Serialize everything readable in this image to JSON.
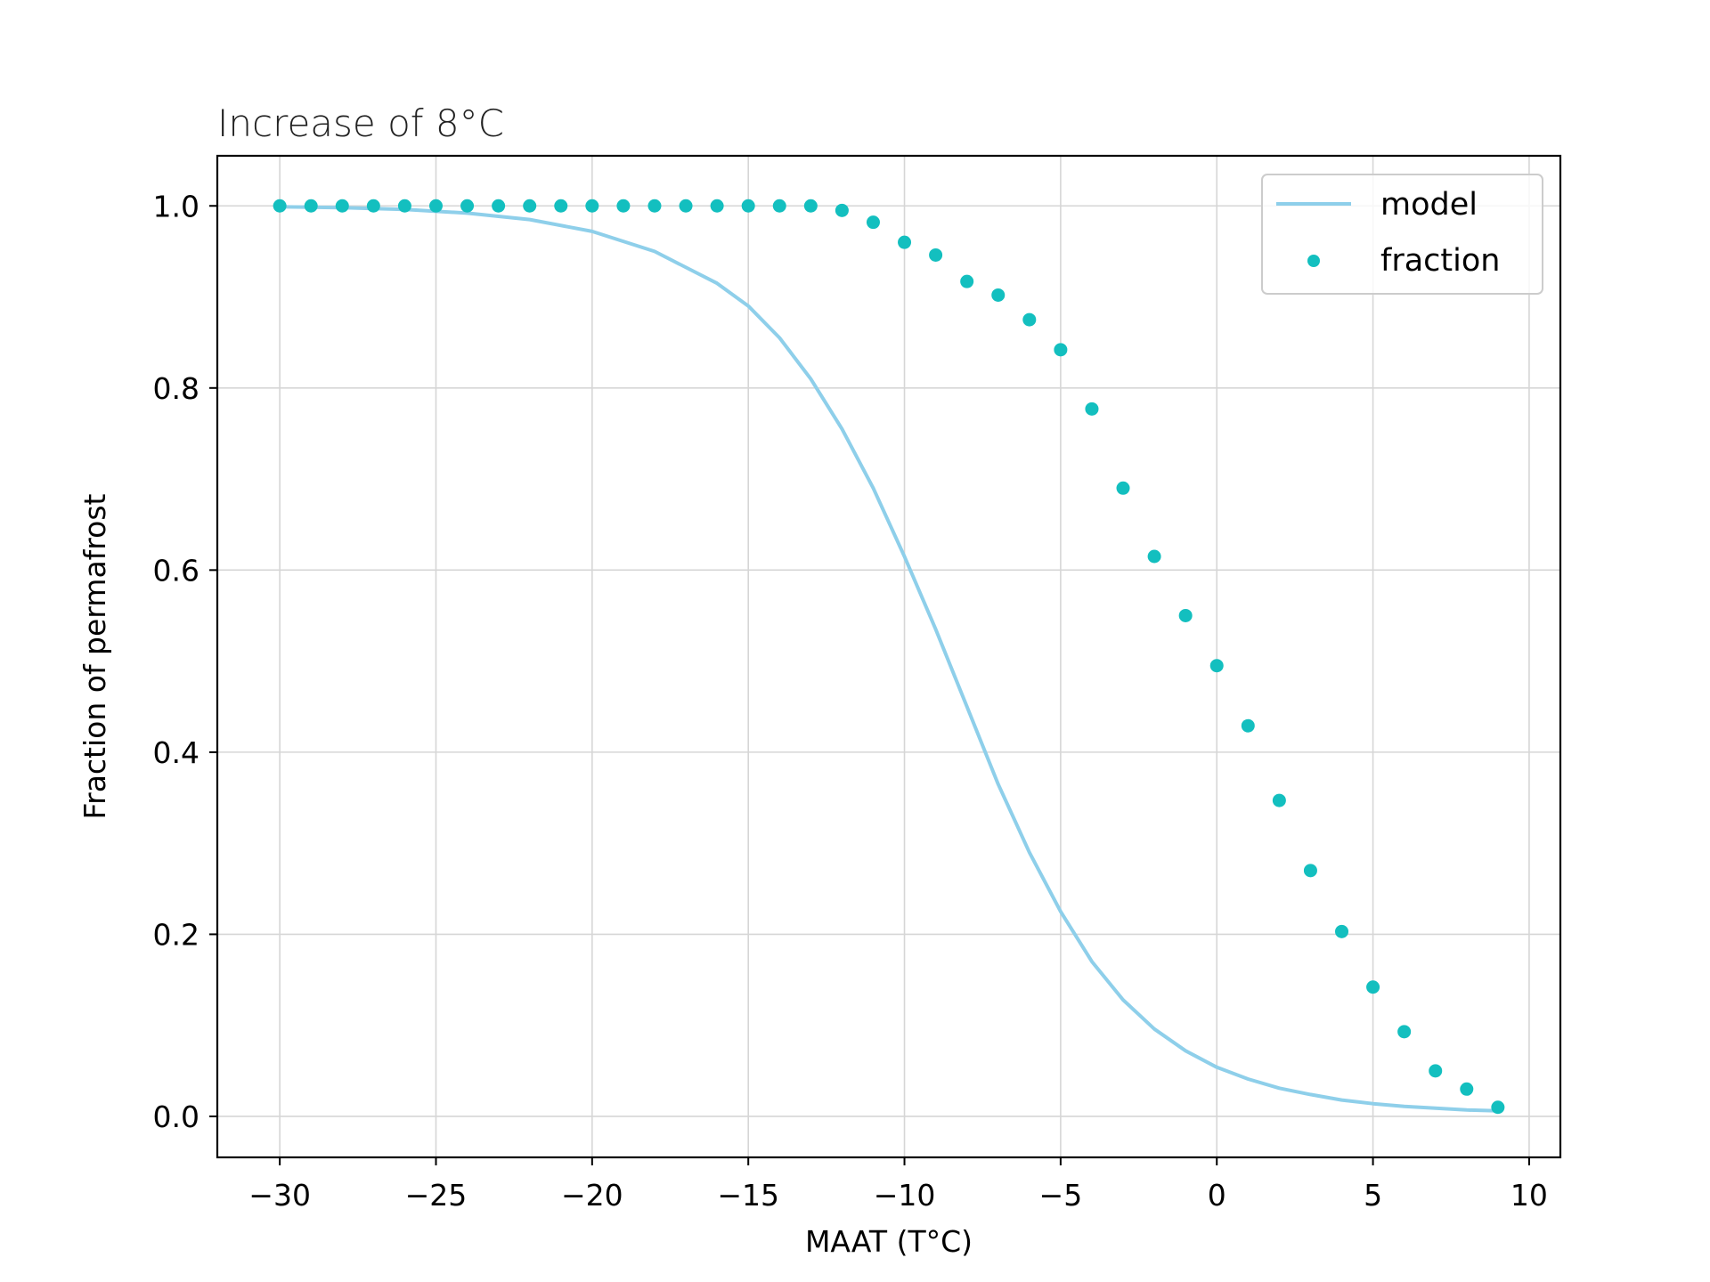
{
  "chart_data": {
    "type": "line",
    "title": "Increase of 8°C",
    "xlabel": "MAAT (T°C)",
    "ylabel": "Fraction of permafrost",
    "xlim": [
      -32,
      11
    ],
    "ylim": [
      -0.045,
      1.055
    ],
    "xticks": [
      -30,
      -25,
      -20,
      -15,
      -10,
      -5,
      0,
      5,
      10
    ],
    "xtick_labels": [
      "−30",
      "−25",
      "−20",
      "−15",
      "−10",
      "−5",
      "0",
      "5",
      "10"
    ],
    "yticks": [
      0.0,
      0.2,
      0.4,
      0.6,
      0.8,
      1.0
    ],
    "ytick_labels": [
      "0.0",
      "0.2",
      "0.4",
      "0.6",
      "0.8",
      "1.0"
    ],
    "grid": true,
    "legend_position": "top-right",
    "colors": {
      "model": "#8ecfea",
      "fraction": "#13bfbf"
    },
    "series": [
      {
        "name": "model",
        "kind": "line",
        "x": [
          -30,
          -28,
          -26,
          -24,
          -22,
          -20,
          -18,
          -16,
          -15,
          -14,
          -13,
          -12,
          -11,
          -10,
          -9,
          -8,
          -7,
          -6,
          -5,
          -4,
          -3,
          -2,
          -1,
          0,
          1,
          2,
          3,
          4,
          5,
          6,
          7,
          8,
          9
        ],
        "y": [
          0.999,
          0.998,
          0.996,
          0.992,
          0.985,
          0.972,
          0.95,
          0.915,
          0.89,
          0.855,
          0.81,
          0.755,
          0.69,
          0.615,
          0.535,
          0.45,
          0.365,
          0.29,
          0.225,
          0.17,
          0.128,
          0.096,
          0.072,
          0.054,
          0.041,
          0.031,
          0.024,
          0.018,
          0.014,
          0.011,
          0.009,
          0.007,
          0.006
        ]
      },
      {
        "name": "fraction",
        "kind": "scatter",
        "x": [
          -30,
          -29,
          -28,
          -27,
          -26,
          -25,
          -24,
          -23,
          -22,
          -21,
          -20,
          -19,
          -18,
          -17,
          -16,
          -15,
          -14,
          -13,
          -12,
          -11,
          -10,
          -9,
          -8,
          -7,
          -6,
          -5,
          -4,
          -3,
          -2,
          -1,
          0,
          1,
          2,
          3,
          4,
          5,
          6,
          7,
          8,
          9
        ],
        "y": [
          1.0,
          1.0,
          1.0,
          1.0,
          1.0,
          1.0,
          1.0,
          1.0,
          1.0,
          1.0,
          1.0,
          1.0,
          1.0,
          1.0,
          1.0,
          1.0,
          1.0,
          1.0,
          0.995,
          0.982,
          0.96,
          0.946,
          0.917,
          0.902,
          0.875,
          0.842,
          0.777,
          0.69,
          0.615,
          0.55,
          0.495,
          0.429,
          0.347,
          0.27,
          0.203,
          0.142,
          0.093,
          0.05,
          0.03,
          0.01
        ]
      }
    ]
  }
}
